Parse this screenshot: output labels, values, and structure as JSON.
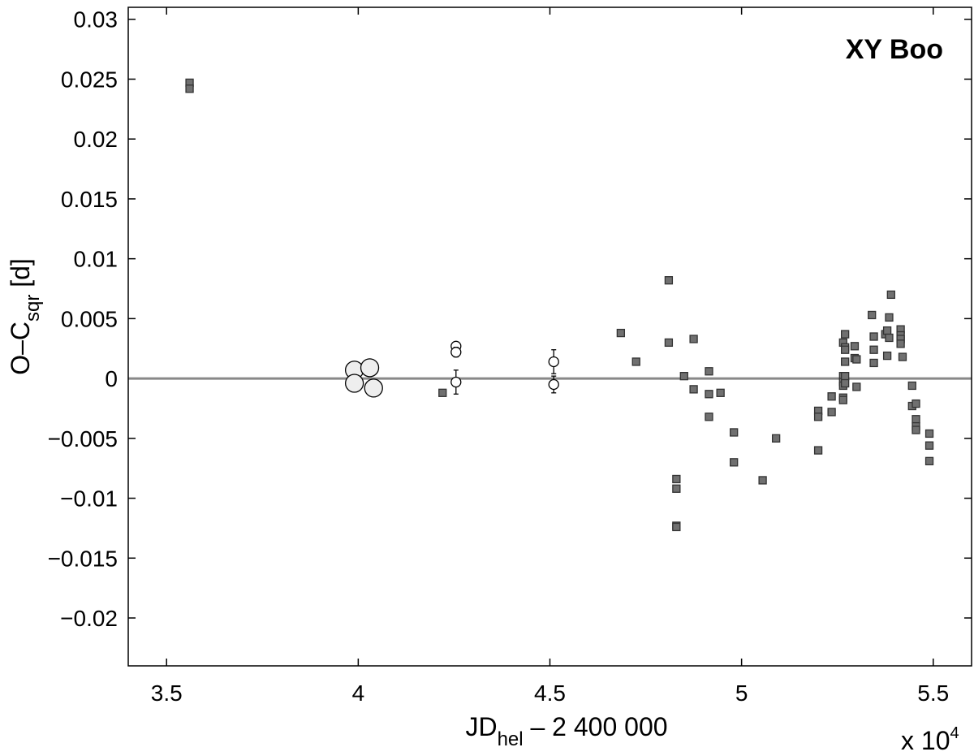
{
  "chart_data": {
    "type": "scatter",
    "title": "XY Boo",
    "xlabel": {
      "main": "JD",
      "sub": "hel",
      "rest": " – 2 400 000"
    },
    "ylabel": {
      "main": "O–C",
      "sub": "sqr",
      "rest": "  [d]"
    },
    "x_multiplier": {
      "base": "x 10",
      "exp": "4"
    },
    "xlim": [
      3.4,
      5.6
    ],
    "ylim": [
      -0.024,
      0.031
    ],
    "x_ticks": [
      3.5,
      4,
      4.5,
      5,
      5.5
    ],
    "x_tick_labels": [
      "3.5",
      "4",
      "4.5",
      "5",
      "5.5"
    ],
    "y_ticks": [
      0.03,
      0.025,
      0.02,
      0.015,
      0.01,
      0.005,
      0,
      -0.005,
      -0.01,
      -0.015,
      -0.02
    ],
    "y_tick_labels": [
      "0.03",
      "0.025",
      "0.02",
      "0.015",
      "0.01",
      "0.005",
      "0",
      "−0.005",
      "−0.01",
      "−0.015",
      "−0.02"
    ],
    "reference_line": 0,
    "grid": false,
    "colors": {
      "square_fill": "#707070",
      "square_stroke": "#333333",
      "large_circle_fill": "#eeeeee",
      "small_circle_fill": "#ffffff",
      "zero_line": "#888888"
    },
    "series": [
      {
        "marker": "large-circle",
        "points": [
          [
            3.99,
            0.0007
          ],
          [
            4.03,
            0.0009
          ],
          [
            3.99,
            -0.0004
          ],
          [
            4.04,
            -0.0008
          ]
        ]
      },
      {
        "marker": "small-circle",
        "points": [
          {
            "x": 4.255,
            "y": 0.0027,
            "err": 0
          },
          {
            "x": 4.255,
            "y": 0.0022,
            "err": 0.0004
          },
          {
            "x": 4.255,
            "y": -0.0003,
            "err": 0.001
          },
          {
            "x": 4.51,
            "y": 0.0014,
            "err": 0.001
          },
          {
            "x": 4.51,
            "y": -0.0005,
            "err": 0.0007
          }
        ]
      },
      {
        "marker": "square",
        "points": [
          [
            3.56,
            0.0247
          ],
          [
            3.56,
            0.0242
          ],
          [
            4.22,
            -0.0012
          ],
          [
            4.685,
            0.0038
          ],
          [
            4.725,
            0.0014
          ],
          [
            4.81,
            0.0082
          ],
          [
            4.81,
            0.003
          ],
          [
            4.83,
            -0.0084
          ],
          [
            4.83,
            -0.0092
          ],
          [
            4.83,
            -0.0123
          ],
          [
            4.83,
            -0.0124
          ],
          [
            4.85,
            0.0002
          ],
          [
            4.875,
            0.0033
          ],
          [
            4.875,
            -0.0009
          ],
          [
            4.915,
            0.0006
          ],
          [
            4.915,
            -0.0013
          ],
          [
            4.915,
            -0.0032
          ],
          [
            4.945,
            -0.0012
          ],
          [
            4.98,
            -0.0045
          ],
          [
            4.98,
            -0.007
          ],
          [
            5.055,
            -0.0085
          ],
          [
            5.09,
            -0.005
          ],
          [
            5.2,
            -0.0027
          ],
          [
            5.2,
            -0.0032
          ],
          [
            5.2,
            -0.006
          ],
          [
            5.235,
            -0.0015
          ],
          [
            5.235,
            -0.0028
          ],
          [
            5.265,
            0.003
          ],
          [
            5.265,
            0.0002
          ],
          [
            5.265,
            -0.0003
          ],
          [
            5.265,
            -0.0006
          ],
          [
            5.265,
            -0.0016
          ],
          [
            5.265,
            -0.0018
          ],
          [
            5.27,
            0.0037
          ],
          [
            5.27,
            0.0026
          ],
          [
            5.27,
            0.0024
          ],
          [
            5.27,
            0.0014
          ],
          [
            5.27,
            0.0002
          ],
          [
            5.27,
            -0.0004
          ],
          [
            5.295,
            0.0027
          ],
          [
            5.295,
            0.0017
          ],
          [
            5.3,
            0.0016
          ],
          [
            5.3,
            -0.0007
          ],
          [
            5.34,
            0.0053
          ],
          [
            5.345,
            0.0035
          ],
          [
            5.345,
            0.0024
          ],
          [
            5.345,
            0.0013
          ],
          [
            5.375,
            0.0037
          ],
          [
            5.38,
            0.004
          ],
          [
            5.38,
            0.0019
          ],
          [
            5.385,
            0.0051
          ],
          [
            5.385,
            0.0034
          ],
          [
            5.39,
            0.007
          ],
          [
            5.415,
            0.0041
          ],
          [
            5.415,
            0.0036
          ],
          [
            5.415,
            0.0033
          ],
          [
            5.415,
            0.0029
          ],
          [
            5.42,
            0.0018
          ],
          [
            5.445,
            -0.0006
          ],
          [
            5.445,
            -0.0023
          ],
          [
            5.455,
            -0.0021
          ],
          [
            5.455,
            -0.0034
          ],
          [
            5.455,
            -0.004
          ],
          [
            5.455,
            -0.0043
          ],
          [
            5.49,
            -0.0046
          ],
          [
            5.49,
            -0.0056
          ],
          [
            5.49,
            -0.0069
          ]
        ]
      }
    ]
  }
}
